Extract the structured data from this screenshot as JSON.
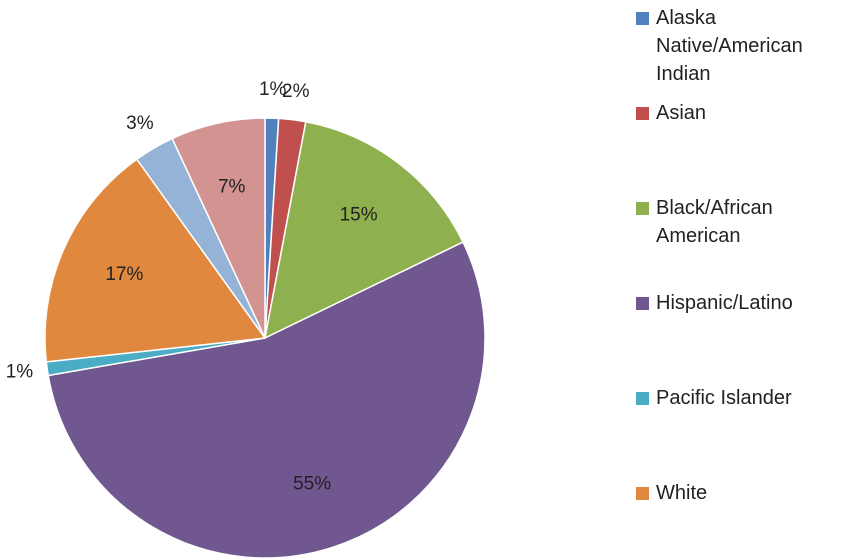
{
  "chart_data": {
    "type": "pie",
    "categories": [
      "Alaska Native/American Indian",
      "Asian",
      "Black/African American",
      "Hispanic/Latino",
      "Pacific Islander",
      "White",
      null,
      null
    ],
    "values": [
      1,
      2,
      15,
      55,
      1,
      17,
      3,
      7
    ],
    "colors": [
      "#4f81bd",
      "#c0504d",
      "#8fb04e",
      "#71578f",
      "#4bacc6",
      "#e0883e",
      "#95b3d7",
      "#d39391"
    ]
  }
}
